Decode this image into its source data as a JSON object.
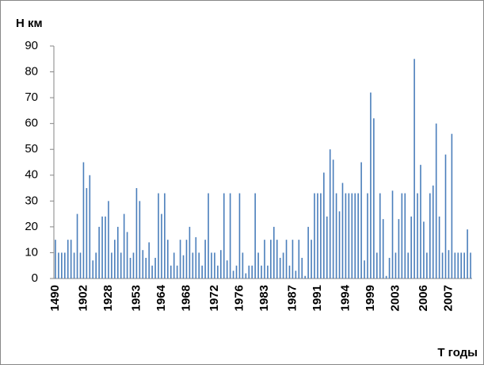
{
  "chart_data": {
    "type": "bar",
    "y_label": "Н км",
    "x_label": "Т годы",
    "color": "#4a7ebb",
    "ylim": [
      0,
      90
    ],
    "yticks": [
      0,
      10,
      20,
      30,
      40,
      50,
      60,
      70,
      80,
      90
    ],
    "categories": [
      "1490",
      null,
      null,
      null,
      null,
      null,
      null,
      null,
      null,
      "1902",
      null,
      null,
      null,
      null,
      null,
      null,
      null,
      "1928",
      null,
      null,
      null,
      null,
      null,
      null,
      null,
      null,
      "1953",
      null,
      null,
      null,
      null,
      null,
      null,
      null,
      "1964",
      null,
      null,
      null,
      null,
      null,
      null,
      null,
      "1968",
      null,
      null,
      null,
      null,
      null,
      null,
      null,
      null,
      "1972",
      null,
      null,
      null,
      null,
      null,
      null,
      null,
      "1976",
      null,
      null,
      null,
      null,
      null,
      null,
      null,
      "1983",
      null,
      null,
      null,
      null,
      null,
      null,
      null,
      null,
      "1987",
      null,
      null,
      null,
      null,
      null,
      null,
      null,
      "1991",
      null,
      null,
      null,
      null,
      null,
      null,
      null,
      null,
      "1994",
      null,
      null,
      null,
      null,
      null,
      null,
      null,
      "1999",
      null,
      null,
      null,
      null,
      null,
      null,
      null,
      "2003",
      null,
      null,
      null,
      null,
      null,
      null,
      null,
      null,
      "2006",
      null,
      null,
      null,
      null,
      null,
      null,
      null,
      "2007",
      null,
      null,
      null,
      null,
      null,
      null,
      null
    ],
    "values": [
      15,
      10,
      10,
      10,
      15,
      15,
      10,
      25,
      10,
      45,
      35,
      40,
      7,
      10,
      20,
      24,
      24,
      30,
      10,
      15,
      20,
      10,
      25,
      18,
      8,
      10,
      35,
      30,
      11,
      8,
      14,
      5,
      8,
      33,
      25,
      33,
      15,
      5,
      10,
      5,
      15,
      9,
      15,
      20,
      10,
      16,
      10,
      5,
      15,
      33,
      10,
      10,
      5,
      11,
      33,
      7,
      33,
      3,
      5,
      33,
      10,
      2,
      5,
      5,
      33,
      10,
      5,
      15,
      5,
      15,
      20,
      15,
      8,
      10,
      15,
      5,
      15,
      3,
      15,
      8,
      1,
      20,
      15,
      33,
      33,
      33,
      41,
      24,
      50,
      46,
      33,
      26,
      37,
      33,
      33,
      33,
      33,
      33,
      45,
      7,
      33,
      72,
      62,
      10,
      33,
      23,
      1,
      8,
      34,
      10,
      23,
      33,
      33,
      10,
      24,
      85,
      33,
      44,
      22,
      10,
      33,
      36,
      60,
      24,
      10,
      48,
      11,
      56,
      10,
      10,
      10,
      10,
      19,
      10
    ]
  }
}
